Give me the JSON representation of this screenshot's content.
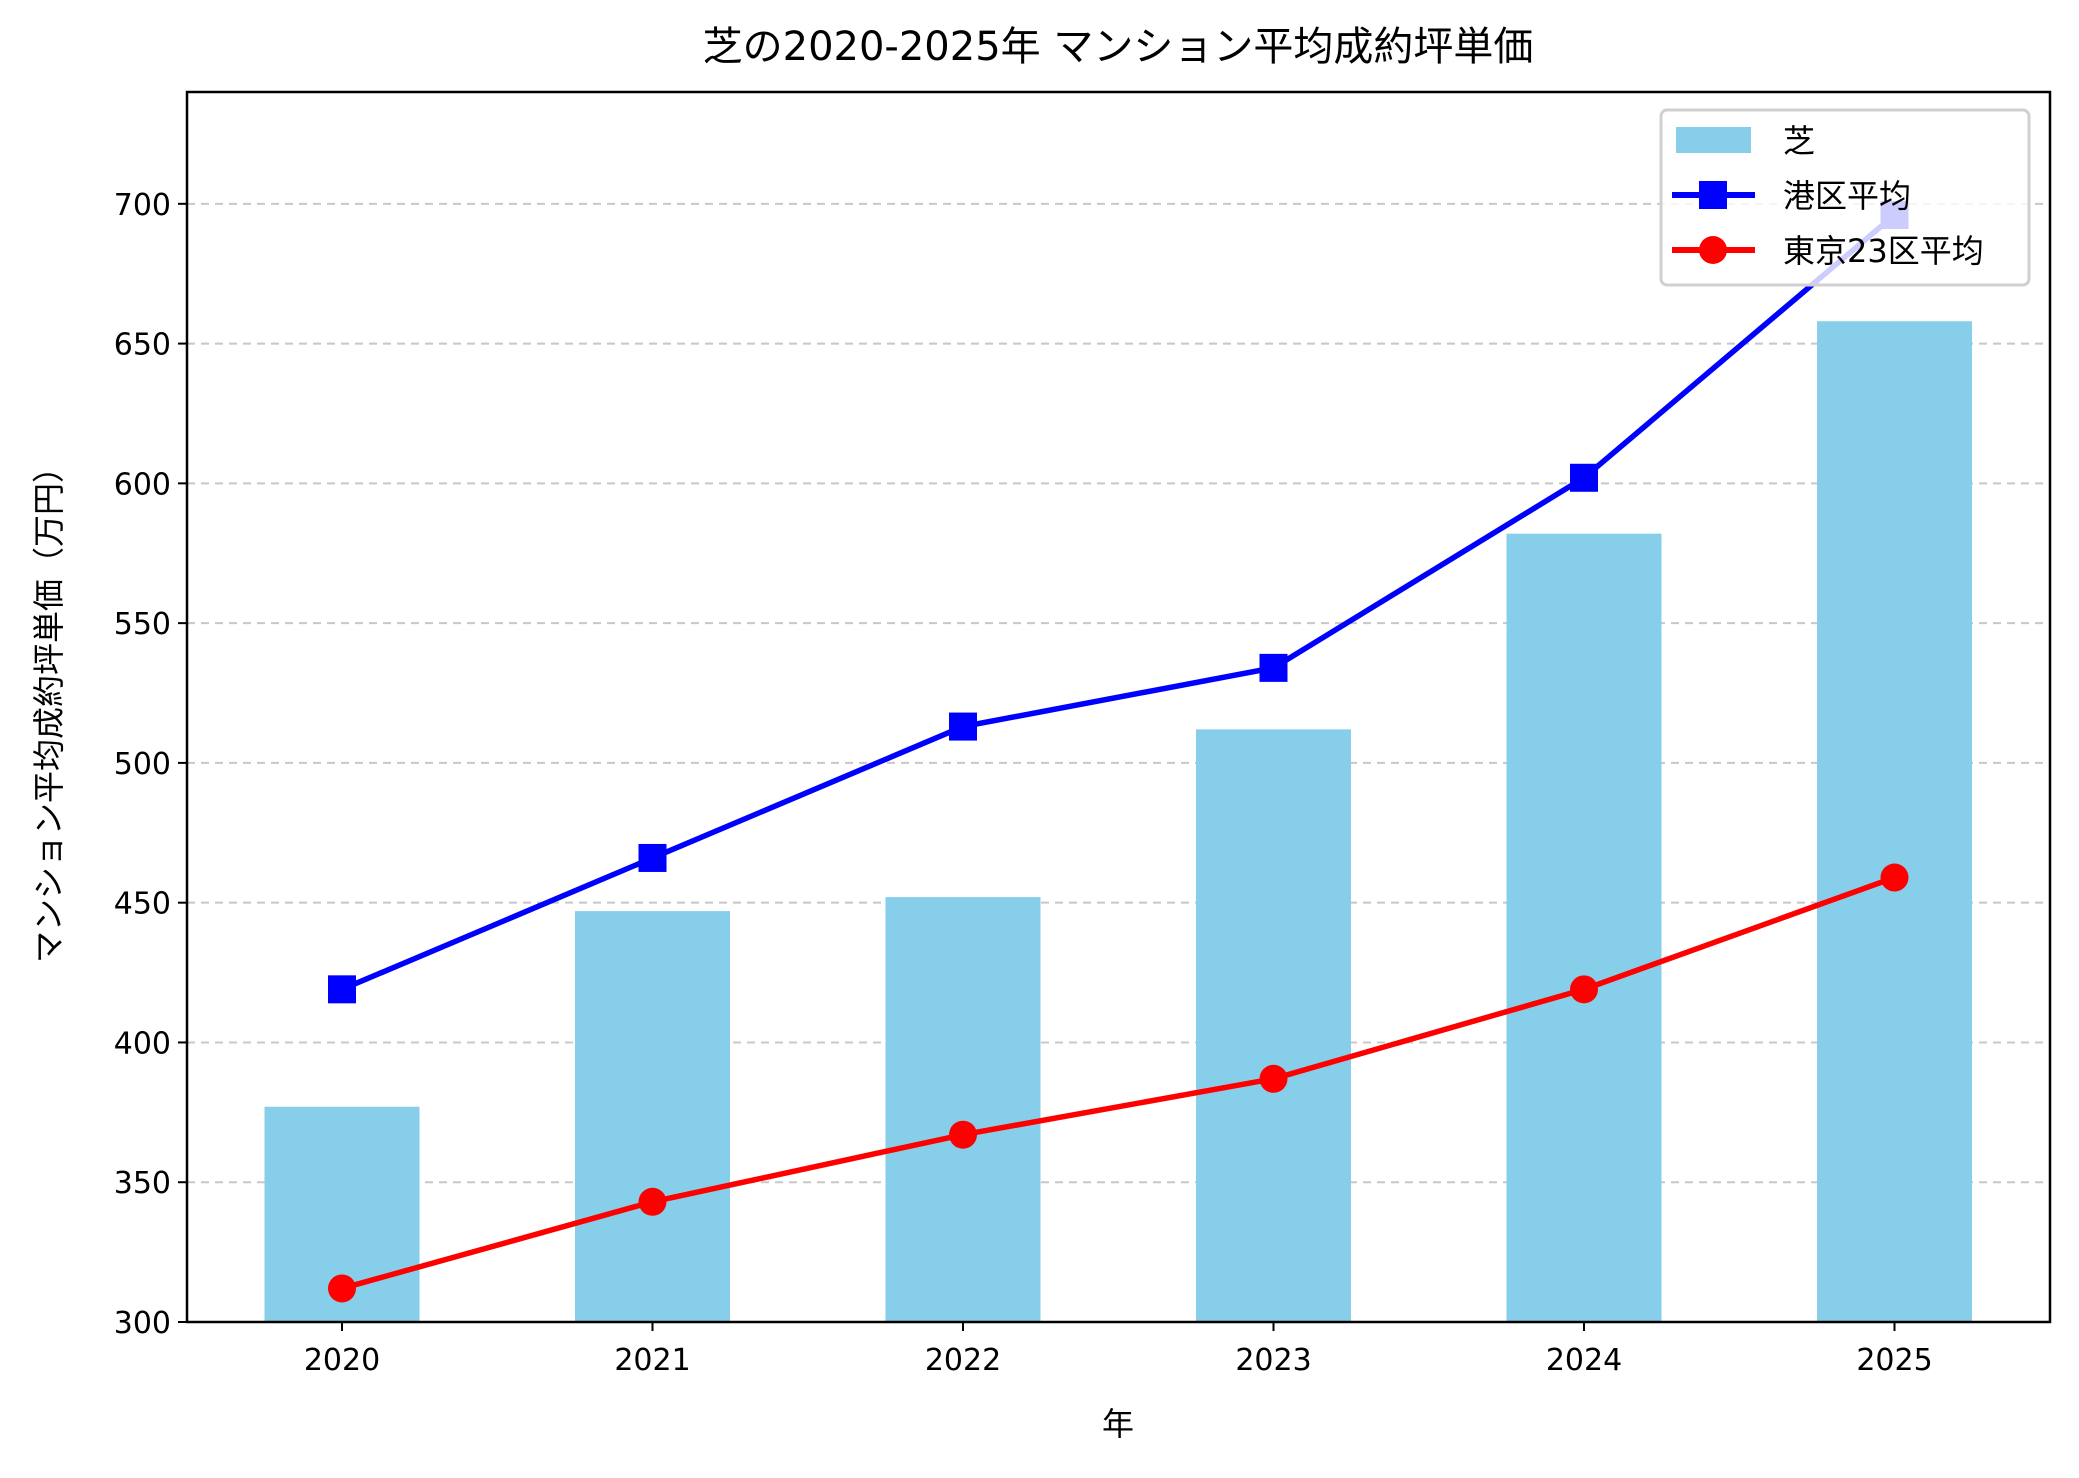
{
  "chart_data": {
    "type": "bar+line",
    "title": "芝の2020-2025年 マンション平均成約坪単価",
    "xlabel": "年",
    "ylabel": "マンション平均成約坪単価（万円）",
    "categories": [
      "2020",
      "2021",
      "2022",
      "2023",
      "2024",
      "2025"
    ],
    "ylim": [
      300,
      740
    ],
    "yticks": [
      300,
      350,
      400,
      450,
      500,
      550,
      600,
      650,
      700
    ],
    "grid": "y-dashed",
    "legend_position": "top-right",
    "series": [
      {
        "name": "芝",
        "type": "bar",
        "color": "#87CEEB",
        "values": [
          377,
          447,
          452,
          512,
          582,
          658
        ]
      },
      {
        "name": "港区平均",
        "type": "line",
        "marker": "square",
        "color": "#0000FF",
        "values": [
          419,
          466,
          513,
          534,
          602,
          696
        ]
      },
      {
        "name": "東京23区平均",
        "type": "line",
        "marker": "circle",
        "color": "#FF0000",
        "values": [
          312,
          343,
          367,
          387,
          419,
          459
        ]
      }
    ]
  }
}
